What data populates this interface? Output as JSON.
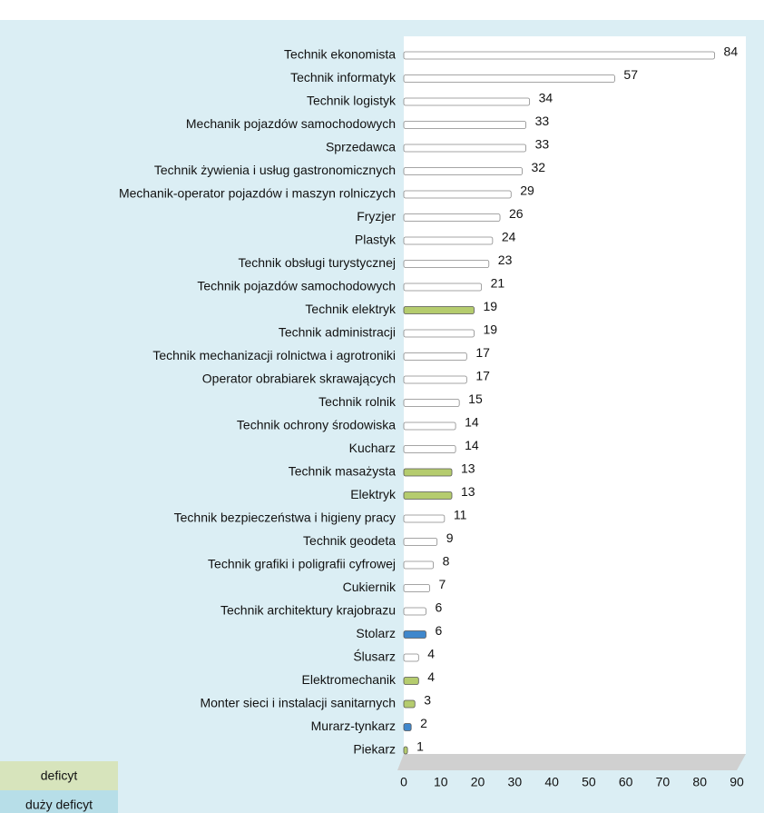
{
  "chart_data": {
    "type": "bar",
    "orientation": "horizontal",
    "categories": [
      "Technik ekonomista",
      "Technik informatyk",
      "Technik logistyk",
      "Mechanik pojazdów samochodowych",
      "Sprzedawca",
      "Technik żywienia i usług gastronomicznych",
      "Mechanik-operator pojazdów i maszyn rolniczych",
      "Fryzjer",
      "Plastyk",
      "Technik obsługi turystycznej",
      "Technik pojazdów samochodowych",
      "Technik elektryk",
      "Technik administracji",
      "Technik mechanizacji rolnictwa i agrotroniki",
      "Operator obrabiarek skrawających",
      "Technik rolnik",
      "Technik ochrony środowiska",
      "Kucharz",
      "Technik masażysta",
      "Elektryk",
      "Technik bezpieczeństwa i higieny pracy",
      "Technik geodeta",
      "Technik grafiki i poligrafii cyfrowej",
      "Cukiernik",
      "Technik architektury krajobrazu",
      "Stolarz",
      "Ślusarz",
      "Elektromechanik",
      "Monter sieci i instalacji sanitarnych",
      "Murarz-tynkarz",
      "Piekarz"
    ],
    "values": [
      84,
      57,
      34,
      33,
      33,
      32,
      29,
      26,
      24,
      23,
      21,
      19,
      19,
      17,
      17,
      15,
      14,
      14,
      13,
      13,
      11,
      9,
      8,
      7,
      6,
      6,
      4,
      4,
      3,
      2,
      1
    ],
    "colors": [
      "#ffffff",
      "#ffffff",
      "#ffffff",
      "#ffffff",
      "#ffffff",
      "#ffffff",
      "#ffffff",
      "#ffffff",
      "#ffffff",
      "#ffffff",
      "#ffffff",
      "#b5cc6e",
      "#ffffff",
      "#ffffff",
      "#ffffff",
      "#ffffff",
      "#ffffff",
      "#ffffff",
      "#b5cc6e",
      "#b5cc6e",
      "#ffffff",
      "#ffffff",
      "#ffffff",
      "#ffffff",
      "#ffffff",
      "#3f87cc",
      "#ffffff",
      "#b5cc6e",
      "#b5cc6e",
      "#3f87cc",
      "#b5cc6e"
    ],
    "xlim": [
      0,
      90
    ],
    "xticks": [
      0,
      10,
      20,
      30,
      40,
      50,
      60,
      70,
      80,
      90
    ],
    "legend": [
      {
        "name": "deficyt",
        "color": "#d7e4bc"
      },
      {
        "name": "duży deficyt",
        "color": "#b7dee8"
      }
    ]
  }
}
